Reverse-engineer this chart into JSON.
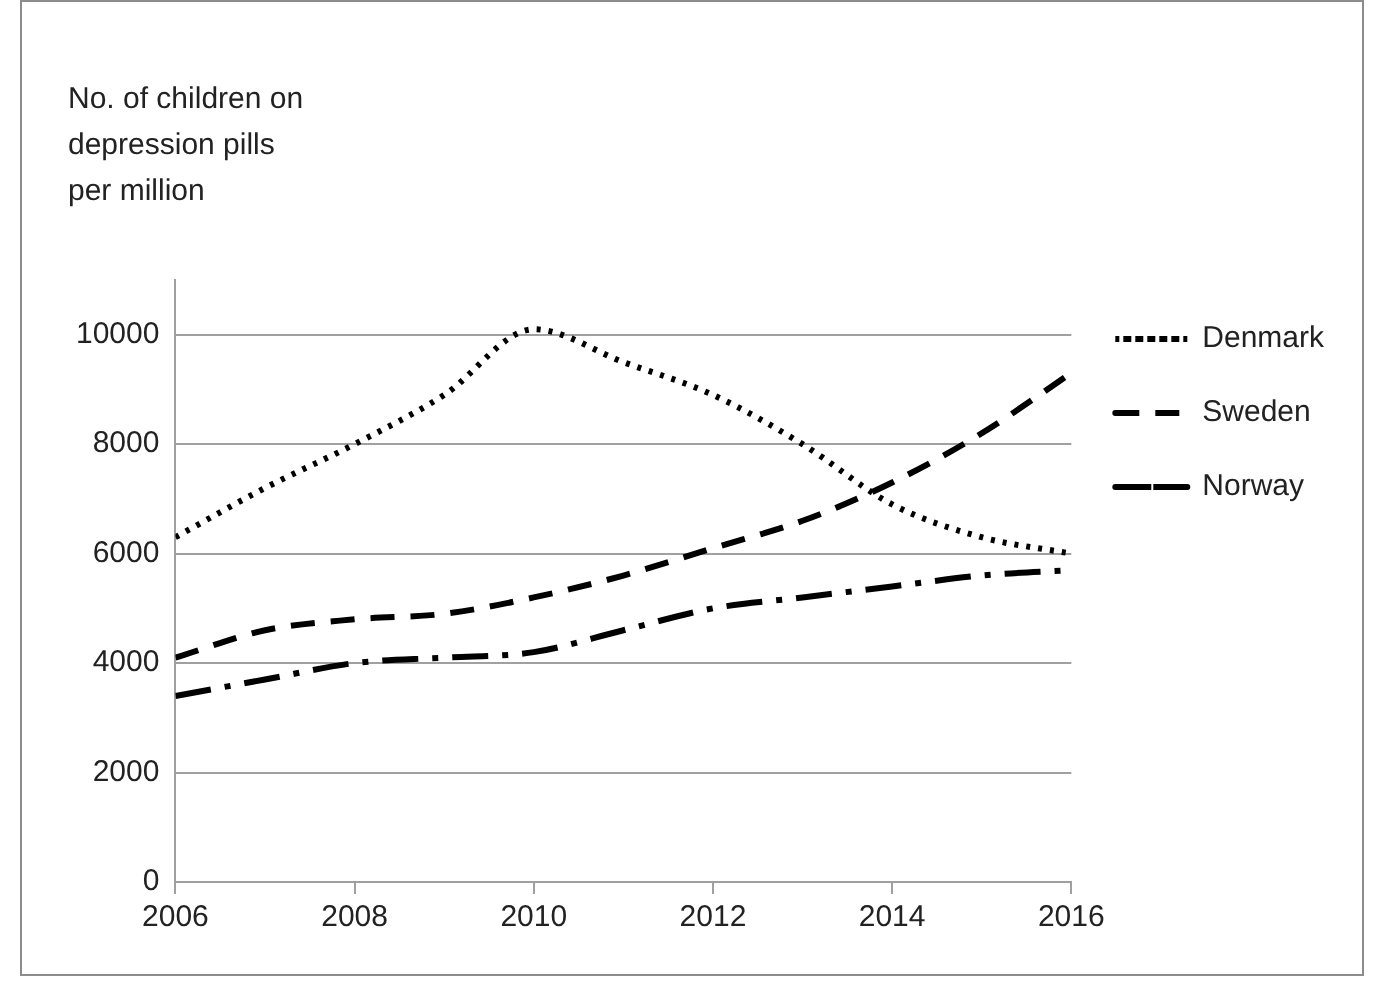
{
  "chart_data": {
    "type": "line",
    "ylabel": "No. of children on depression pills per million",
    "x": [
      2006,
      2007,
      2008,
      2009,
      2010,
      2011,
      2012,
      2013,
      2014,
      2015,
      2016
    ],
    "xlim": [
      2006,
      2016
    ],
    "xticks": [
      2006,
      2008,
      2010,
      2012,
      2014,
      2016
    ],
    "ylim": [
      0,
      11000
    ],
    "yticks": [
      0,
      2000,
      4000,
      6000,
      8000,
      10000
    ],
    "grid": "y",
    "legend": "right",
    "marker": "none",
    "series": [
      {
        "name": "Denmark",
        "color": "#000000",
        "line_style": "dotted",
        "values": [
          6300,
          7200,
          8000,
          8900,
          10100,
          9500,
          8900,
          8000,
          6900,
          6300,
          6000
        ]
      },
      {
        "name": "Sweden",
        "color": "#000000",
        "line_style": "dashed",
        "values": [
          4100,
          4600,
          4800,
          4900,
          5200,
          5600,
          6100,
          6600,
          7300,
          8200,
          9300
        ]
      },
      {
        "name": "Norway",
        "color": "#000000",
        "line_style": "dashdot",
        "values": [
          3400,
          3700,
          4000,
          4100,
          4200,
          4600,
          5000,
          5200,
          5400,
          5600,
          5700
        ]
      }
    ]
  }
}
